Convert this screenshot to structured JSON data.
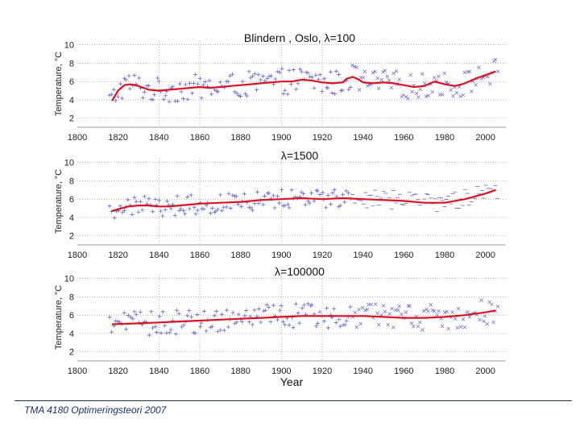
{
  "footer": {
    "text": "TMA 4180 Optimeringsteori 2007"
  },
  "colors": {
    "observed": "#6666cc",
    "smooth": "#dd1122",
    "grid": "#888888"
  },
  "chart_data": [
    {
      "type": "scatter+line",
      "title": "Blindern , Oslo, λ=100",
      "ylabel": "Temperature, °C",
      "xlabel": "",
      "xlim": [
        1800,
        2010
      ],
      "ylim": [
        1,
        10.5
      ],
      "xticks": [
        1800,
        1820,
        1840,
        1860,
        1880,
        1900,
        1920,
        1940,
        1960,
        1980,
        2000
      ],
      "yticks": [
        2,
        4,
        6,
        8,
        10
      ],
      "grid": true,
      "smooth": {
        "x": [
          1817,
          1820,
          1823,
          1826,
          1830,
          1835,
          1840,
          1845,
          1850,
          1855,
          1860,
          1865,
          1870,
          1875,
          1880,
          1885,
          1890,
          1895,
          1900,
          1905,
          1910,
          1915,
          1920,
          1925,
          1930,
          1932,
          1935,
          1938,
          1940,
          1945,
          1950,
          1955,
          1960,
          1965,
          1970,
          1975,
          1980,
          1985,
          1990,
          1995,
          2000,
          2005
        ],
        "y": [
          3.9,
          5.0,
          5.6,
          5.7,
          5.5,
          5.1,
          5.0,
          5.1,
          5.2,
          5.3,
          5.4,
          5.3,
          5.4,
          5.5,
          5.6,
          5.7,
          5.8,
          5.9,
          6.0,
          6.0,
          6.2,
          6.1,
          5.9,
          5.8,
          5.9,
          6.3,
          6.5,
          6.2,
          5.9,
          5.8,
          5.9,
          5.8,
          5.6,
          5.4,
          5.5,
          6.0,
          5.7,
          5.5,
          5.8,
          6.3,
          6.7,
          7.1
        ]
      }
    },
    {
      "type": "scatter+line",
      "title": "λ=1500",
      "ylabel": "Temperature, °C",
      "xlabel": "",
      "xlim": [
        1800,
        2010
      ],
      "ylim": [
        1,
        10.5
      ],
      "xticks": [
        1800,
        1820,
        1840,
        1860,
        1880,
        1900,
        1920,
        1940,
        1960,
        1980,
        2000
      ],
      "yticks": [
        2,
        4,
        6,
        8,
        10
      ],
      "grid": true,
      "smooth": {
        "x": [
          1817,
          1820,
          1825,
          1830,
          1835,
          1840,
          1845,
          1850,
          1855,
          1860,
          1870,
          1880,
          1890,
          1900,
          1910,
          1920,
          1930,
          1940,
          1950,
          1960,
          1970,
          1980,
          1990,
          2000,
          2005
        ],
        "y": [
          4.7,
          4.9,
          5.2,
          5.3,
          5.3,
          5.2,
          5.2,
          5.3,
          5.4,
          5.5,
          5.6,
          5.7,
          5.9,
          6.0,
          6.1,
          6.0,
          6.1,
          6.0,
          5.9,
          5.8,
          5.6,
          5.6,
          6.0,
          6.6,
          7.0
        ]
      }
    },
    {
      "type": "scatter+line",
      "title": "λ=100000",
      "ylabel": "Temperature, °C",
      "xlabel": "Year",
      "xlim": [
        1800,
        2010
      ],
      "ylim": [
        1,
        10.5
      ],
      "xticks": [
        1800,
        1820,
        1840,
        1860,
        1880,
        1900,
        1920,
        1940,
        1960,
        1980,
        2000
      ],
      "yticks": [
        2,
        4,
        6,
        8,
        10
      ],
      "grid": true,
      "smooth": {
        "x": [
          1817,
          1830,
          1840,
          1850,
          1860,
          1870,
          1880,
          1890,
          1900,
          1910,
          1920,
          1930,
          1940,
          1950,
          1960,
          1970,
          1980,
          1990,
          2000,
          2005
        ],
        "y": [
          5.0,
          5.1,
          5.2,
          5.3,
          5.4,
          5.5,
          5.6,
          5.7,
          5.8,
          5.9,
          5.9,
          5.9,
          5.9,
          5.8,
          5.7,
          5.7,
          5.8,
          6.0,
          6.3,
          6.5
        ]
      }
    }
  ]
}
